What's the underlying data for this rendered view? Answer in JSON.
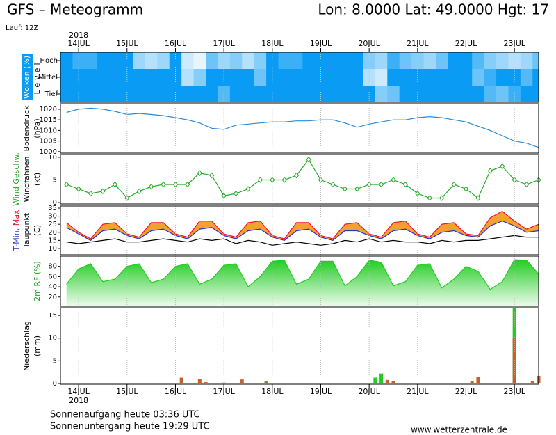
{
  "header": {
    "title": "GFS – Meteogramm",
    "location": "Lon: 8.0000 Lat: 49.0000 Hgt: 17",
    "run": "Lauf: 12Z"
  },
  "chart_data": {
    "type": "meteogram",
    "year_label": "2018",
    "xlim": [
      -0.375,
      9.5
    ],
    "xticks": [
      {
        "value": 0,
        "label": "14JUL"
      },
      {
        "value": 1,
        "label": "15JUL"
      },
      {
        "value": 2,
        "label": "16JUL"
      },
      {
        "value": 3,
        "label": "17JUL"
      },
      {
        "value": 4,
        "label": "18JUL"
      },
      {
        "value": 5,
        "label": "19JUL"
      },
      {
        "value": 6,
        "label": "20JUL"
      },
      {
        "value": 7,
        "label": "21JUL"
      },
      {
        "value": 8,
        "label": "22JUL"
      },
      {
        "value": 9,
        "label": "23JUL"
      }
    ],
    "grid": true,
    "x": [
      -0.25,
      0,
      0.25,
      0.5,
      0.75,
      1,
      1.25,
      1.5,
      1.75,
      2,
      2.25,
      2.5,
      2.75,
      3,
      3.25,
      3.5,
      3.75,
      4,
      4.25,
      4.5,
      4.75,
      5,
      5.25,
      5.5,
      5.75,
      6,
      6.25,
      6.5,
      6.75,
      7,
      7.25,
      7.5,
      7.75,
      8,
      8.25,
      8.5,
      8.75,
      9,
      9.25,
      9.5
    ],
    "panels": [
      {
        "type": "heatmap",
        "color": "#0a9cf4",
        "labels": [
          {
            "text": "Wolken (%)",
            "color": "#ffffff",
            "box": "#0a9cf4"
          },
          {
            "text": "Level",
            "color": "#000000"
          }
        ],
        "rows": [
          {
            "name": "Hoch",
            "values": [
              100,
              80,
              80,
              100,
              100,
              100,
              40,
              30,
              40,
              100,
              20,
              10,
              60,
              40,
              50,
              30,
              50,
              100,
              80,
              80,
              100,
              100,
              100,
              100,
              100,
              50,
              40,
              80,
              60,
              50,
              40,
              60,
              100,
              100,
              70,
              50,
              40,
              30,
              40,
              60
            ]
          },
          {
            "name": "Mittel",
            "values": [
              100,
              100,
              100,
              100,
              100,
              100,
              100,
              100,
              100,
              100,
              30,
              50,
              100,
              100,
              100,
              100,
              60,
              100,
              100,
              100,
              100,
              100,
              100,
              100,
              100,
              30,
              20,
              100,
              100,
              100,
              100,
              100,
              100,
              100,
              60,
              80,
              100,
              100,
              70,
              100
            ]
          },
          {
            "name": "Tief",
            "values": [
              100,
              100,
              100,
              100,
              100,
              100,
              100,
              100,
              100,
              100,
              100,
              100,
              100,
              70,
              100,
              100,
              100,
              100,
              100,
              100,
              100,
              100,
              100,
              100,
              100,
              100,
              50,
              60,
              100,
              100,
              100,
              100,
              100,
              100,
              100,
              70,
              60,
              80,
              100,
              100
            ]
          }
        ]
      },
      {
        "type": "line",
        "labels": [
          {
            "text": "Bodendruck",
            "color": "#000000"
          },
          {
            "text": "(hPa)",
            "color": "#000000"
          }
        ],
        "ylim": [
          999.3,
          1022.6
        ],
        "yticks": [
          1000,
          1005,
          1010,
          1015,
          1020
        ],
        "series": [
          {
            "color": "#2a8ad8",
            "values": [
              1018.5,
              1020,
              1020.5,
              1020,
              1019,
              1017.5,
              1018,
              1017.5,
              1017,
              1016,
              1015,
              1013.5,
              1011,
              1010.5,
              1012.5,
              1013,
              1013.5,
              1014,
              1014,
              1014.5,
              1014.5,
              1015,
              1015,
              1013.5,
              1011.5,
              1013,
              1014,
              1015,
              1015,
              1016,
              1016.5,
              1016,
              1015,
              1014,
              1012,
              1010,
              1007.5,
              1005,
              1004,
              1002
            ]
          }
        ]
      },
      {
        "type": "line",
        "labels": [
          {
            "text": "Wind Geschw.",
            "color": "#22aa22"
          },
          {
            "text": "Windfahnen",
            "color": "#000000"
          },
          {
            "text": "(kt)",
            "color": "#000000"
          }
        ],
        "ylim": [
          -0.3,
          10.6
        ],
        "yticks": [
          0,
          5,
          10
        ],
        "series": [
          {
            "color": "#22aa22",
            "markers": "diamond",
            "values": [
              4,
              3,
              2,
              2.5,
              4,
              1,
              2.5,
              3.5,
              4,
              4,
              4,
              6.5,
              6,
              1.5,
              2,
              3,
              5,
              5,
              5,
              6,
              9.5,
              5,
              4,
              3,
              3,
              4,
              4,
              5,
              4,
              2,
              1,
              1,
              4,
              3,
              1,
              7,
              8,
              5,
              4,
              5
            ]
          }
        ]
      },
      {
        "type": "band",
        "band_color": "#f5a030",
        "labels": [
          {
            "parts": [
              {
                "text": "T-Min,",
                "color": "#2233cc"
              },
              {
                "text": "Max",
                "color": "#ee1133"
              }
            ]
          },
          {
            "text": "Taupunkt",
            "color": "#000000"
          },
          {
            "text": "(C)",
            "color": "#000000"
          }
        ],
        "ylim": [
          6.1,
          36.3
        ],
        "yticks": [
          10,
          15,
          20,
          25,
          30,
          35
        ],
        "series": [
          {
            "color": "#2233cc",
            "values": [
              23,
              19,
              15,
              21,
              22,
              18,
              16,
              21,
              22,
              18,
              16,
              22,
              23,
              18,
              16,
              21,
              22,
              17,
              15,
              21,
              22,
              17,
              15,
              21,
              21,
              18,
              16,
              21,
              22,
              18,
              16,
              20,
              21,
              18,
              17,
              24,
              27,
              24,
              20,
              21
            ]
          },
          {
            "color": "#ee1133",
            "values": [
              26,
              20,
              16,
              25,
              26,
              19,
              17,
              26,
              26,
              19,
              17,
              27,
              27,
              19,
              17,
              26,
              27,
              18,
              16,
              26,
              26,
              18,
              16,
              25,
              26,
              19,
              17,
              26,
              27,
              19,
              17,
              25,
              26,
              19,
              18,
              29,
              33,
              27,
              22,
              25
            ]
          },
          {
            "color": "#000000",
            "values": [
              14,
              13,
              14,
              15,
              16,
              14,
              14,
              15,
              16,
              15,
              14,
              16,
              15,
              16,
              13,
              15,
              14,
              12,
              13,
              14,
              13,
              12,
              13,
              15,
              14,
              16,
              14,
              15,
              14,
              14,
              13,
              15,
              14,
              15,
              15,
              16,
              17,
              18,
              17,
              17
            ]
          }
        ]
      },
      {
        "type": "area",
        "labels": [
          {
            "text": "2m RF (%)",
            "color": "#22aa22"
          }
        ],
        "ylim": [
          2,
          100
        ],
        "yticks": [
          20,
          40,
          60,
          80
        ],
        "series": [
          {
            "color": "#22cc22",
            "values": [
              45,
              75,
              85,
              50,
              55,
              80,
              85,
              48,
              55,
              80,
              85,
              45,
              55,
              82,
              85,
              40,
              60,
              90,
              92,
              45,
              55,
              90,
              90,
              42,
              60,
              92,
              88,
              42,
              50,
              82,
              85,
              38,
              55,
              80,
              70,
              35,
              50,
              93,
              92,
              65
            ]
          }
        ]
      },
      {
        "type": "bar",
        "labels": [
          {
            "text": "Niederschlag",
            "color": "#000000"
          },
          {
            "text": "(mm)",
            "color": "#000000"
          }
        ],
        "ylim": [
          -0.15,
          16.7
        ],
        "yticks": [
          0,
          5,
          10,
          15
        ],
        "series": [
          {
            "color": "#22cc22",
            "x": [
              3.875,
              6.125,
              6.25,
              9.0
            ],
            "values": [
              0.5,
              1.3,
              2.2,
              16.7
            ]
          },
          {
            "color": "#c8602a",
            "x": [
              2.125,
              2.5,
              2.625,
              3.0,
              3.375,
              3.875,
              6.375,
              6.5,
              8.125,
              8.25,
              9.0,
              9.375,
              9.5
            ],
            "values": [
              1.3,
              1.0,
              0.3,
              0.2,
              0.9,
              0.4,
              0.8,
              0.6,
              0.5,
              1.4,
              10,
              0.6,
              1.7
            ]
          }
        ]
      }
    ]
  },
  "footer": {
    "sunrise": "Sonnenaufgang heute 03:36 UTC",
    "sunset": "Sonnenuntergang heute 19:29 UTC",
    "source": "www.wetterzentrale.de"
  }
}
